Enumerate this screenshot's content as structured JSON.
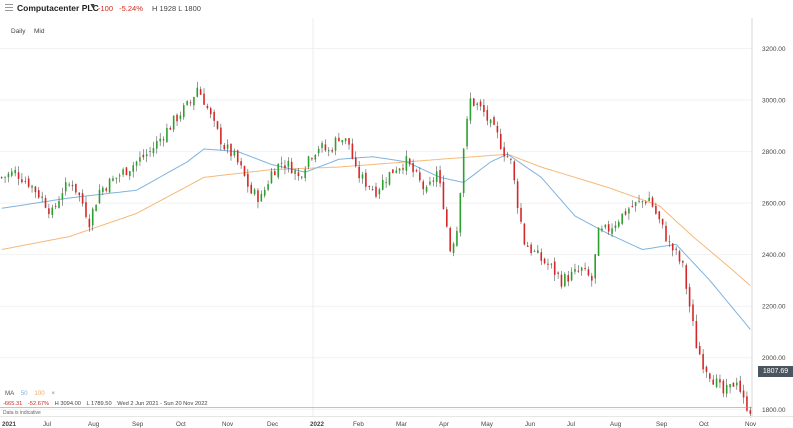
{
  "header": {
    "title": "Computacenter PLC",
    "change": "-100",
    "change_pct": "-5.24%",
    "high_low": "H 1928  L 1800",
    "timeframe": "Daily",
    "price_type": "Mid"
  },
  "legend": {
    "ma_label": "MA",
    "ma1": "50",
    "ma2": "100"
  },
  "stats": {
    "abs_change": "-665.31",
    "pct_change": "-52.67%",
    "high": "H 3094.00",
    "low": "L 1789.50",
    "range": "Wed 2 Jun 2021 - Sun 20 Nov 2022"
  },
  "disclaimer": "Data is indicative",
  "current_price": "1807.69",
  "colors": {
    "up": "#2ca02c",
    "down": "#d62728",
    "ma50": "#7fb3e0",
    "ma100": "#f5b97a",
    "accent": "#4b5560"
  },
  "chart_data": {
    "type": "candlestick",
    "y_ticks": [
      "3200.00",
      "3000.00",
      "2800.00",
      "2600.00",
      "2400.00",
      "2200.00",
      "2000.00",
      "1800.00"
    ],
    "x_ticks": [
      "2021",
      "Jul",
      "Aug",
      "Sep",
      "Oct",
      "Nov",
      "Dec",
      "2022",
      "Feb",
      "Mar",
      "Apr",
      "May",
      "Jun",
      "Jul",
      "Aug",
      "Sep",
      "Oct",
      "Nov"
    ],
    "ylim": [
      1770,
      3330
    ],
    "series_close_anchors": [
      [
        0,
        2700
      ],
      [
        4,
        2720
      ],
      [
        8,
        2680
      ],
      [
        12,
        2620
      ],
      [
        15,
        2560
      ],
      [
        18,
        2650
      ],
      [
        21,
        2680
      ],
      [
        24,
        2600
      ],
      [
        26,
        2530
      ],
      [
        29,
        2650
      ],
      [
        32,
        2680
      ],
      [
        36,
        2720
      ],
      [
        40,
        2760
      ],
      [
        44,
        2800
      ],
      [
        47,
        2850
      ],
      [
        50,
        2900
      ],
      [
        53,
        2950
      ],
      [
        56,
        2990
      ],
      [
        58,
        3050
      ],
      [
        60,
        3000
      ],
      [
        63,
        2900
      ],
      [
        66,
        2820
      ],
      [
        69,
        2780
      ],
      [
        71,
        2730
      ],
      [
        74,
        2640
      ],
      [
        77,
        2620
      ],
      [
        80,
        2720
      ],
      [
        83,
        2760
      ],
      [
        86,
        2740
      ],
      [
        88,
        2700
      ],
      [
        91,
        2780
      ],
      [
        94,
        2820
      ],
      [
        97,
        2800
      ],
      [
        100,
        2860
      ],
      [
        103,
        2830
      ],
      [
        105,
        2720
      ],
      [
        108,
        2680
      ],
      [
        111,
        2650
      ],
      [
        114,
        2700
      ],
      [
        117,
        2740
      ],
      [
        120,
        2760
      ],
      [
        123,
        2700
      ],
      [
        126,
        2640
      ],
      [
        129,
        2720
      ],
      [
        131,
        2600
      ],
      [
        133,
        2420
      ],
      [
        135,
        2500
      ],
      [
        137,
        2820
      ],
      [
        139,
        3000
      ],
      [
        141,
        2980
      ],
      [
        143,
        2950
      ],
      [
        145,
        2900
      ],
      [
        147,
        2860
      ],
      [
        149,
        2800
      ],
      [
        151,
        2760
      ],
      [
        153,
        2600
      ],
      [
        155,
        2450
      ],
      [
        157,
        2420
      ],
      [
        160,
        2380
      ],
      [
        163,
        2350
      ],
      [
        166,
        2300
      ],
      [
        169,
        2320
      ],
      [
        172,
        2340
      ],
      [
        175,
        2300
      ],
      [
        177,
        2480
      ],
      [
        180,
        2500
      ],
      [
        183,
        2540
      ],
      [
        186,
        2580
      ],
      [
        189,
        2600
      ],
      [
        192,
        2620
      ],
      [
        194,
        2560
      ],
      [
        196,
        2500
      ],
      [
        198,
        2440
      ],
      [
        200,
        2400
      ],
      [
        202,
        2350
      ],
      [
        204,
        2200
      ],
      [
        206,
        2050
      ],
      [
        208,
        1980
      ],
      [
        210,
        1940
      ],
      [
        212,
        1900
      ],
      [
        214,
        1860
      ],
      [
        216,
        1880
      ],
      [
        218,
        1920
      ],
      [
        220,
        1830
      ],
      [
        222,
        1800
      ]
    ],
    "ma50_anchors": [
      [
        0,
        2580
      ],
      [
        20,
        2620
      ],
      [
        40,
        2650
      ],
      [
        55,
        2760
      ],
      [
        60,
        2810
      ],
      [
        70,
        2800
      ],
      [
        80,
        2750
      ],
      [
        90,
        2720
      ],
      [
        100,
        2770
      ],
      [
        110,
        2780
      ],
      [
        120,
        2760
      ],
      [
        130,
        2700
      ],
      [
        137,
        2680
      ],
      [
        145,
        2760
      ],
      [
        150,
        2790
      ],
      [
        160,
        2700
      ],
      [
        170,
        2550
      ],
      [
        180,
        2480
      ],
      [
        190,
        2420
      ],
      [
        200,
        2440
      ],
      [
        210,
        2300
      ],
      [
        222,
        2110
      ]
    ],
    "ma100_anchors": [
      [
        0,
        2420
      ],
      [
        20,
        2470
      ],
      [
        40,
        2560
      ],
      [
        60,
        2700
      ],
      [
        80,
        2730
      ],
      [
        100,
        2740
      ],
      [
        120,
        2760
      ],
      [
        140,
        2780
      ],
      [
        150,
        2790
      ],
      [
        160,
        2740
      ],
      [
        180,
        2660
      ],
      [
        195,
        2590
      ],
      [
        205,
        2470
      ],
      [
        215,
        2360
      ],
      [
        222,
        2280
      ]
    ]
  }
}
